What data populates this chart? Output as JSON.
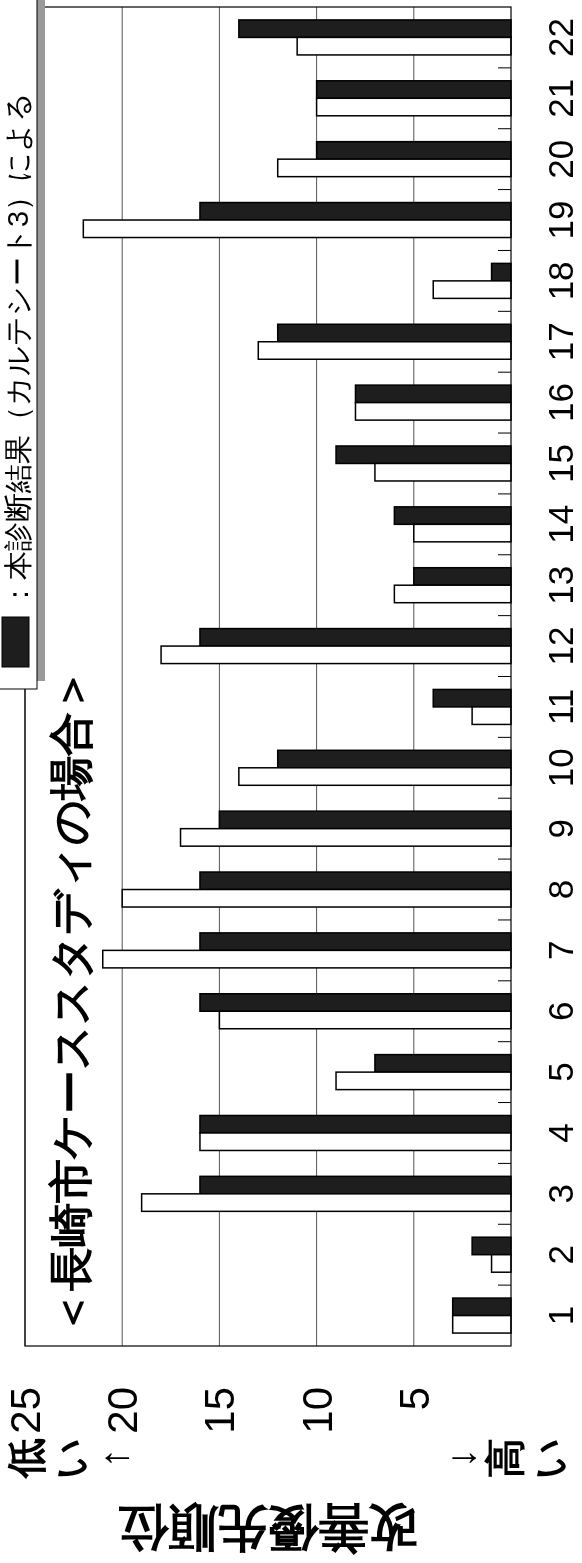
{
  "chart_data": {
    "type": "bar",
    "orientation": "horizontal",
    "title": "＜長崎市ケーススタディの場合＞",
    "xlabel": "改善優先順位",
    "annotations": [
      "低い↑",
      "↓高い"
    ],
    "categories": [
      "22",
      "21",
      "20",
      "19",
      "18",
      "17",
      "16",
      "15",
      "14",
      "13",
      "12",
      "11",
      "10",
      "9",
      "8",
      "7",
      "6",
      "5",
      "4",
      "3",
      "2",
      "1"
    ],
    "series": [
      {
        "name": "：本診断結果（カルテシート3）による",
        "color": "#1e1e1e",
        "values": [
          14,
          10,
          10,
          16,
          1,
          12,
          8,
          9,
          6,
          5,
          16,
          4,
          12,
          15,
          16,
          16,
          16,
          7,
          16,
          16,
          2,
          3
        ]
      },
      {
        "color": "#ffffff",
        "values": [
          11,
          10,
          12,
          22,
          4,
          13,
          8,
          7,
          5,
          6,
          18,
          2,
          14,
          17,
          20,
          21,
          15,
          9,
          16,
          19,
          1,
          3
        ]
      }
    ],
    "xlim": [
      25,
      0
    ],
    "xticks": [
      25,
      20,
      15,
      10,
      5
    ],
    "grid": "x",
    "legend": "top left"
  }
}
